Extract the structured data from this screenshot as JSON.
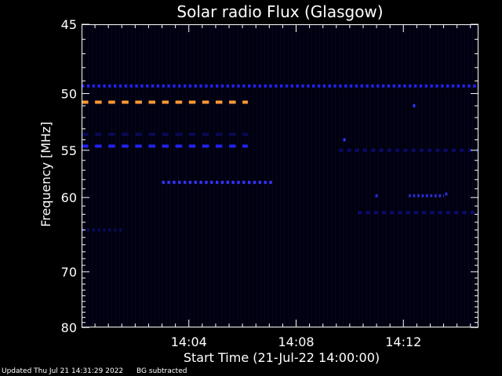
{
  "chart_data": {
    "type": "heatmap",
    "title": "Solar radio Flux (Glasgow)",
    "xlabel": "Start Time (21-Jul-22 14:00:00)",
    "ylabel": "Frequency [MHz]",
    "x_range_minutes": [
      0,
      14.8
    ],
    "x_ticks": [
      {
        "minute": 4,
        "label": "14:04"
      },
      {
        "minute": 8,
        "label": "14:08"
      },
      {
        "minute": 12,
        "label": "14:12"
      }
    ],
    "ylim": [
      45,
      80
    ],
    "y_ticks": [
      {
        "value": 45,
        "label": "45"
      },
      {
        "value": 50,
        "label": "50"
      },
      {
        "value": 55,
        "label": "55"
      },
      {
        "value": 60,
        "label": "60"
      },
      {
        "value": 70,
        "label": "70"
      },
      {
        "value": 80,
        "label": "80"
      }
    ],
    "y_scale": "reciprocal",
    "background_color": "#000010",
    "features": [
      {
        "kind": "dashed_band",
        "freq_mhz": 49.4,
        "t_start": 0,
        "t_end": 14.8,
        "color": "#2222ee",
        "dash": 0.1
      },
      {
        "kind": "dashed_band",
        "freq_mhz": 50.7,
        "t_start": 0,
        "t_end": 6.2,
        "color": "#ff9933",
        "dash": 0.25
      },
      {
        "kind": "dashed_band",
        "freq_mhz": 54.6,
        "t_start": 0,
        "t_end": 6.2,
        "color": "#2222ee",
        "dash": 0.25
      },
      {
        "kind": "dashed_band",
        "freq_mhz": 58.3,
        "t_start": 3.0,
        "t_end": 7.1,
        "color": "#3333ff",
        "dash": 0.1
      },
      {
        "kind": "dashed_band",
        "freq_mhz": 53.5,
        "t_start": 0,
        "t_end": 6.2,
        "color": "#0a0a55",
        "dash": 0.25
      },
      {
        "kind": "dashed_band",
        "freq_mhz": 55.0,
        "t_start": 9.6,
        "t_end": 14.8,
        "color": "#0a0a66",
        "dash": 0.15
      },
      {
        "kind": "dashed_band",
        "freq_mhz": 59.8,
        "t_start": 12.2,
        "t_end": 13.5,
        "color": "#2a2ad0",
        "dash": 0.08
      },
      {
        "kind": "dashed_band",
        "freq_mhz": 61.8,
        "t_start": 10.3,
        "t_end": 14.8,
        "color": "#0c0c70",
        "dash": 0.15
      },
      {
        "kind": "dashed_band",
        "freq_mhz": 64.0,
        "t_start": 0,
        "t_end": 1.6,
        "color": "#0a0a55",
        "dash": 0.1
      },
      {
        "kind": "dot",
        "freq_mhz": 51.0,
        "t": 12.4,
        "color": "#3333ff"
      },
      {
        "kind": "dot",
        "freq_mhz": 54.0,
        "t": 9.8,
        "color": "#3333ff"
      },
      {
        "kind": "dot",
        "freq_mhz": 59.8,
        "t": 11.0,
        "color": "#2a2ad0"
      },
      {
        "kind": "dot",
        "freq_mhz": 59.6,
        "t": 13.6,
        "color": "#2a2ad0"
      }
    ]
  },
  "footer": {
    "updated": "Updated Thu Jul 21 14:31:29 2022",
    "note": "BG subtracted"
  }
}
